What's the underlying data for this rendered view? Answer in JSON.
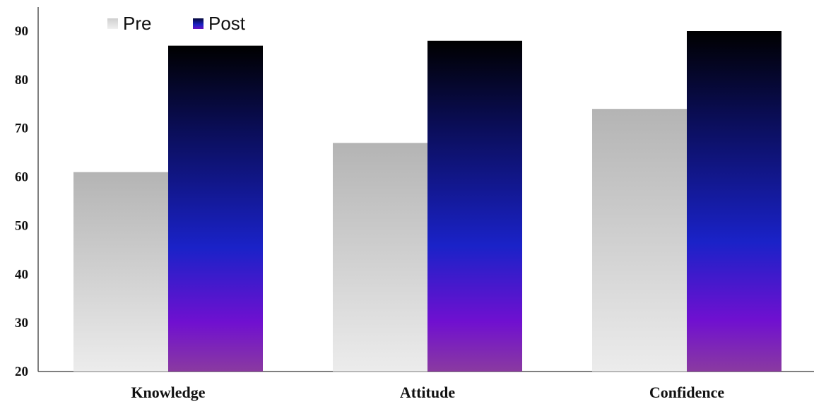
{
  "chart_data": {
    "type": "bar",
    "categories": [
      "Knowledge",
      "Attitude",
      "Confidence"
    ],
    "series": [
      {
        "name": "Pre",
        "values": [
          61,
          67,
          74
        ],
        "color": "#c0c0c0"
      },
      {
        "name": "Post",
        "values": [
          87,
          88,
          90
        ],
        "color": "#1a1ab0"
      }
    ],
    "ylim": [
      20,
      90
    ],
    "yticks": [
      20,
      30,
      40,
      50,
      60,
      70,
      80,
      90
    ],
    "grid": false,
    "legend": "top-left"
  }
}
